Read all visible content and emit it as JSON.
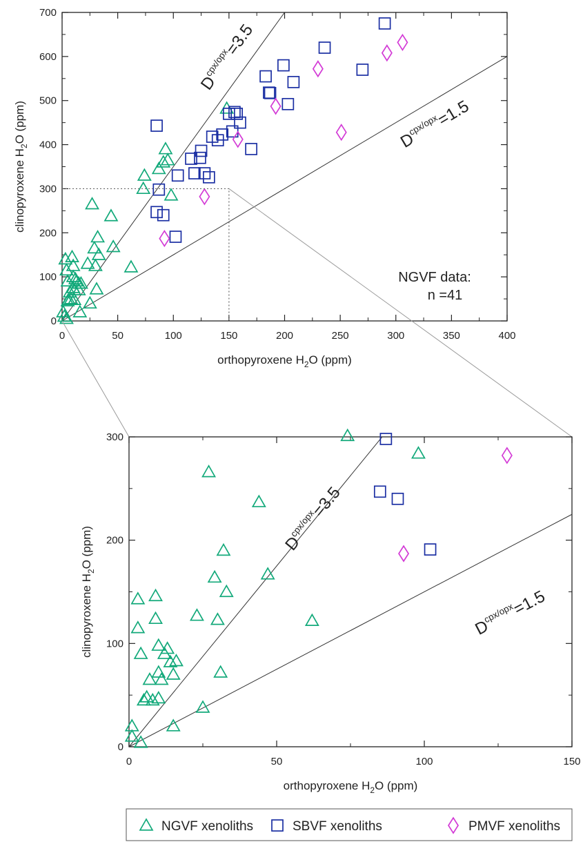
{
  "colors": {
    "ngvf": "#12a97a",
    "sbvf": "#1b2fa3",
    "pmvf": "#d33bd6",
    "axis": "#222222",
    "guide": "#7a7a7a"
  },
  "icons": {
    "ngvf": "triangle-marker-icon",
    "sbvf": "square-marker-icon",
    "pmvf": "diamond-marker-icon"
  },
  "legend": {
    "placement": "bottom",
    "items": [
      {
        "key": "ngvf",
        "label": "NGVF xenoliths"
      },
      {
        "key": "sbvf",
        "label": "SBVF xenoliths"
      },
      {
        "key": "pmvf",
        "label": "PMVF xenoliths"
      }
    ]
  },
  "chart_data": [
    {
      "type": "scatter",
      "panel": "main",
      "xlabel": "orthopyroxene H2O (ppm)",
      "ylabel": "clinopyroxene H2O (ppm)",
      "xlim": [
        0,
        400
      ],
      "ylim": [
        0,
        700
      ],
      "x_ticks": [
        0,
        50,
        100,
        150,
        200,
        250,
        300,
        350,
        400
      ],
      "y_ticks": [
        0,
        100,
        200,
        300,
        400,
        500,
        600,
        700
      ],
      "annotation": {
        "line1": "NGVF data:",
        "line2": "n =41"
      },
      "zoom_box": {
        "x": 150,
        "y": 300
      },
      "reference_lines": [
        {
          "name": "D cpx/opx = 3.5",
          "slope": 3.5,
          "label_main": "D",
          "label_sup": "cpx/opx",
          "label_tail": "=3.5"
        },
        {
          "name": "D cpx/opx = 1.5",
          "slope": 1.5,
          "label_main": "D",
          "label_sup": "cpx/opx",
          "label_tail": "=1.5"
        }
      ],
      "series": [
        {
          "name": "NGVF xenoliths",
          "marker": "triangle",
          "points": [
            [
              1,
              20
            ],
            [
              2,
              10
            ],
            [
              3,
              140
            ],
            [
              4,
              5
            ],
            [
              4,
              115
            ],
            [
              5,
              90
            ],
            [
              5,
              45
            ],
            [
              6,
              48
            ],
            [
              7,
              65
            ],
            [
              8,
              50
            ],
            [
              9,
              145
            ],
            [
              10,
              125
            ],
            [
              10,
              100
            ],
            [
              10,
              75
            ],
            [
              11,
              70
            ],
            [
              11,
              48
            ],
            [
              12,
              95
            ],
            [
              13,
              90
            ],
            [
              15,
              70
            ],
            [
              15,
              85
            ],
            [
              16,
              20
            ],
            [
              17,
              85
            ],
            [
              23,
              130
            ],
            [
              25,
              40
            ],
            [
              27,
              265
            ],
            [
              29,
              165
            ],
            [
              30,
              125
            ],
            [
              31,
              72
            ],
            [
              32,
              190
            ],
            [
              33,
              150
            ],
            [
              44,
              238
            ],
            [
              46,
              168
            ],
            [
              62,
              122
            ],
            [
              73,
              300
            ],
            [
              74,
              330
            ],
            [
              87,
              345
            ],
            [
              91,
              360
            ],
            [
              93,
              390
            ],
            [
              95,
              365
            ],
            [
              98,
              285
            ],
            [
              148,
              482
            ]
          ]
        },
        {
          "name": "SBVF xenoliths",
          "marker": "square",
          "points": [
            [
              85,
              443
            ],
            [
              87,
              298
            ],
            [
              85,
              247
            ],
            [
              91,
              240
            ],
            [
              102,
              191
            ],
            [
              104,
              330
            ],
            [
              116,
              368
            ],
            [
              119,
              335
            ],
            [
              124,
              370
            ],
            [
              125,
              386
            ],
            [
              128,
              335
            ],
            [
              132,
              326
            ],
            [
              135,
              418
            ],
            [
              140,
              410
            ],
            [
              144,
              423
            ],
            [
              150,
              470
            ],
            [
              153,
              430
            ],
            [
              155,
              474
            ],
            [
              157,
              470
            ],
            [
              160,
              450
            ],
            [
              170,
              390
            ],
            [
              183,
              555
            ],
            [
              186,
              518
            ],
            [
              187,
              517
            ],
            [
              199,
              580
            ],
            [
              203,
              492
            ],
            [
              208,
              542
            ],
            [
              236,
              620
            ],
            [
              270,
              570
            ],
            [
              290,
              675
            ]
          ]
        },
        {
          "name": "PMVF xenoliths",
          "marker": "diamond",
          "points": [
            [
              92,
              187
            ],
            [
              128,
              282
            ],
            [
              158,
              412
            ],
            [
              192,
              487
            ],
            [
              230,
              572
            ],
            [
              251,
              428
            ],
            [
              292,
              608
            ],
            [
              306,
              632
            ]
          ]
        }
      ]
    },
    {
      "type": "scatter",
      "panel": "zoom",
      "xlabel": "orthopyroxene H2O (ppm)",
      "ylabel": "clinopyroxene H2O (ppm)",
      "xlim": [
        0,
        150
      ],
      "ylim": [
        0,
        300
      ],
      "x_ticks": [
        0,
        50,
        100,
        150
      ],
      "y_ticks": [
        0,
        100,
        200,
        300
      ],
      "reference_lines": [
        {
          "name": "D cpx/opx = 3.5",
          "slope": 3.5,
          "label_main": "D",
          "label_sup": "cpx/opx",
          "label_tail": "=3.5"
        },
        {
          "name": "D cpx/opx = 1.5",
          "slope": 1.5,
          "label_main": "D",
          "label_sup": "cpx/opx",
          "label_tail": "=1.5"
        }
      ],
      "series": [
        {
          "name": "NGVF xenoliths",
          "marker": "triangle",
          "points": [
            [
              1,
              20
            ],
            [
              1,
              10
            ],
            [
              3,
              143
            ],
            [
              4,
              4
            ],
            [
              3,
              115
            ],
            [
              4,
              90
            ],
            [
              5,
              45
            ],
            [
              6,
              48
            ],
            [
              7,
              65
            ],
            [
              8,
              45
            ],
            [
              9,
              146
            ],
            [
              9,
              124
            ],
            [
              10,
              98
            ],
            [
              10,
              72
            ],
            [
              11,
              65
            ],
            [
              10,
              47
            ],
            [
              13,
              95
            ],
            [
              12,
              90
            ],
            [
              15,
              70
            ],
            [
              14,
              82
            ],
            [
              15,
              20
            ],
            [
              16,
              83
            ],
            [
              23,
              127
            ],
            [
              25,
              38
            ],
            [
              27,
              266
            ],
            [
              29,
              164
            ],
            [
              30,
              123
            ],
            [
              31,
              72
            ],
            [
              32,
              190
            ],
            [
              33,
              150
            ],
            [
              44,
              237
            ],
            [
              47,
              167
            ],
            [
              62,
              122
            ],
            [
              74,
              301
            ],
            [
              98,
              284
            ]
          ]
        },
        {
          "name": "SBVF xenoliths",
          "marker": "square",
          "points": [
            [
              87,
              298
            ],
            [
              85,
              247
            ],
            [
              91,
              240
            ],
            [
              102,
              191
            ]
          ]
        },
        {
          "name": "PMVF xenoliths",
          "marker": "diamond",
          "points": [
            [
              93,
              187
            ],
            [
              128,
              282
            ]
          ]
        }
      ]
    }
  ]
}
